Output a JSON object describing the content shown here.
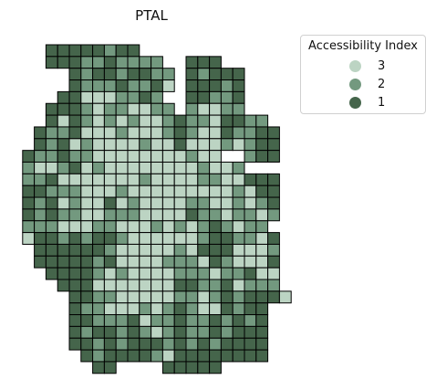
{
  "map": {
    "title": "PTAL",
    "legend_title": "Accessibility Index",
    "legend": [
      {
        "label": "3",
        "color": "#bcd4c3"
      },
      {
        "label": "2",
        "color": "#73997f"
      },
      {
        "label": "1",
        "color": "#45654b"
      }
    ],
    "cell_border_color": "#000000",
    "rows": [
      ". . . 1 1 1 1 1 2 1 1",
      ". . . 1 1 1 2 2 1 2 2 2 2 . . 1 1 1",
      ". . . . . 1 2 1 1 2 1 1 2 2 . 1 2 1 1 1",
      ". . . . . 1 2 2 2 1 2 2 1 3 . 1 1 1 2 1",
      ". . . . 1 1 3 3 3 2 2 1 2 . . 1 1 2 2 1",
      ". . . 1 1 1 2 3 2 2 3 3 2 2 . 2 3 3 2 2",
      ". . . 1 3 1 2 3 2 3 2 3 3 2 1 2 2 3 1 1 2 2",
      ". . 1 2 2 1 3 3 3 2 3 3 3 2 1 2 3 3 1 2 2 1 1",
      ". . 1 2 1 3 2 3 3 3 3 2 3 3 1 3 3 3 2 3 2 1 1",
      ". 1 2 2 1 2 2 3 3 3 3 3 3 3 3 2 3 3 . . 2 1 1",
      ". 2 3 3 2 1 3 2 3 3 3 3 3 3 3 3 2 3 3 2",
      ". 2 2 1 3 3 3 3 3 3 3 2 3 3 3 3 2 2 3 3 1 1 1",
      ". 1 1 2 2 2 3 3 3 2 3 3 3 3 3 3 3 3 3 2 3 1 1",
      ". 1 2 1 3 2 3 3 1 3 2 3 3 3 3 2 2 3 3 2 3 2 1",
      ". 1 2 1 2 2 3 3 2 2 2 3 3 3 3 1 2 2 3 2 2 3 2",
      ". 2 2 2 3 3 3 2 2 3 3 3 2 3 2 3 2 1 2 3 2 2",
      ". 3 1 1 2 1 2 1 1 2 3 3 3 3 3 3 2 1 1 2 2 3 1",
      ". . 1 1 1 1 1 1 2 3 3 3 3 3 2 3 1 1 1 3 3 3 2",
      ". . 1 1 1 1 1 2 1 3 3 3 3 2 2 2 3 1 2 3 3 3 1",
      ". . . 1 1 1 1 2 3 2 3 3 3 3 2 2 2 3 2 2 1 3 3",
      ". . . . 1 1 1 3 3 3 3 3 3 3 1 1 2 2 1 3 2 2 2",
      ". . . . . 1 1 2 2 3 3 3 3 3 2 2 3 2 1 2 1 1 1 3",
      ". . . . . 1 2 2 3 3 3 2 3 2 1 2 3 3 1 2 1 1",
      ". . . . . 1 1 2 2 2 1 3 2 2 1 2 2 1 2 1 2 1",
      ". . . . . 1 2 1 1 2 1 2 3 2 1 2 2 1 2 1 1 1",
      ". . . . . 1 1 2 1 2 1 1 1 2 1 2 1 2 1 1 1 1",
      ". . . . . . 1 2 1 1 1 1 2 3 1 1 1 1 1 1 1 1",
      ". . . . . . . 1 1 . . . . 1 1 1 1 1"
    ]
  }
}
